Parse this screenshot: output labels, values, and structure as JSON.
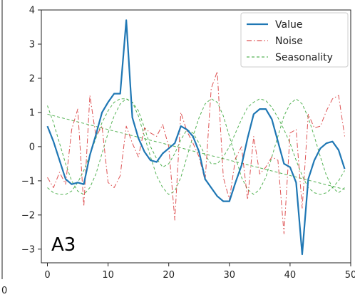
{
  "chart_data": {
    "type": "line",
    "panel_label": "A3",
    "xlim": [
      -1,
      50
    ],
    "ylim": [
      -3.4,
      4.0
    ],
    "x_ticks": [
      0,
      10,
      20,
      30,
      40,
      50
    ],
    "x_tick_labels": [
      "0",
      "10",
      "20",
      "30",
      "40",
      "50"
    ],
    "y_ticks": [
      -3,
      -2,
      -1,
      0,
      1,
      2,
      3,
      4
    ],
    "y_tick_labels": [
      "−3",
      "−2",
      "−1",
      "0",
      "1",
      "2",
      "3",
      "4"
    ],
    "left_edge_label": "0",
    "grid": false,
    "legend": {
      "placement": "top-right",
      "entries": [
        "Value",
        "Noise",
        "Seasonality"
      ]
    },
    "series": [
      {
        "name": "Value",
        "style": "solid",
        "color": "#1f77b4",
        "x": [
          0,
          1,
          2,
          3,
          4,
          5,
          6,
          7,
          8,
          9,
          10,
          11,
          12,
          13,
          14,
          15,
          16,
          17,
          18,
          19,
          20,
          21,
          22,
          23,
          24,
          25,
          26,
          27,
          28,
          29,
          30,
          31,
          32,
          33,
          34,
          35,
          36,
          37,
          38,
          39,
          40,
          41,
          42,
          43,
          44,
          45,
          46,
          47,
          48,
          49
        ],
        "values": [
          0.6,
          0.15,
          -0.4,
          -0.95,
          -1.1,
          -1.05,
          -1.1,
          -0.25,
          0.35,
          1.0,
          1.3,
          1.55,
          1.55,
          3.7,
          0.85,
          0.25,
          -0.15,
          -0.4,
          -0.45,
          -0.2,
          -0.05,
          0.1,
          0.6,
          0.5,
          0.3,
          -0.15,
          -0.95,
          -1.2,
          -1.45,
          -1.6,
          -1.6,
          -1.05,
          -0.55,
          0.25,
          0.95,
          1.1,
          1.1,
          0.8,
          0.15,
          -0.5,
          -0.6,
          -1.05,
          -3.15,
          -0.95,
          -0.4,
          -0.05,
          0.1,
          0.15,
          -0.1,
          -0.65
        ]
      },
      {
        "name": "Noise",
        "style": "dashdot",
        "color": "#d62728",
        "x": [
          0,
          1,
          2,
          3,
          4,
          5,
          6,
          7,
          8,
          9,
          10,
          11,
          12,
          13,
          14,
          15,
          16,
          17,
          18,
          19,
          20,
          21,
          22,
          23,
          24,
          25,
          26,
          27,
          28,
          29,
          30,
          31,
          32,
          33,
          34,
          35,
          36,
          37,
          38,
          39,
          40,
          41,
          42,
          43,
          44,
          45,
          46,
          47,
          48,
          49
        ],
        "values": [
          -0.9,
          -1.2,
          -0.75,
          -1.1,
          0.5,
          1.1,
          -1.75,
          1.5,
          0.3,
          0.6,
          -1.05,
          -1.2,
          -0.85,
          0.6,
          0.1,
          -0.3,
          0.55,
          0.4,
          0.3,
          0.65,
          0.0,
          -2.15,
          1.0,
          0.45,
          0.1,
          -0.3,
          -1.0,
          1.7,
          2.2,
          -0.9,
          -1.55,
          -0.35,
          0.0,
          -1.55,
          0.3,
          -0.8,
          -0.6,
          -0.3,
          -0.4,
          -2.55,
          0.4,
          0.5,
          -1.8,
          0.95,
          0.55,
          0.6,
          1.05,
          1.4,
          1.5,
          0.3
        ]
      },
      {
        "name": "Seasonality",
        "style": "dashed",
        "color": "#2ca02c",
        "x": [
          0,
          1,
          2,
          3,
          4,
          5,
          6,
          7,
          8,
          9,
          10,
          11,
          12,
          13,
          14,
          15,
          16,
          17,
          18,
          19,
          20,
          21,
          22,
          23,
          24,
          25,
          26,
          27,
          28,
          29,
          30,
          31,
          32,
          33,
          34,
          35,
          36,
          37,
          38,
          39,
          40,
          41,
          42,
          43,
          44,
          45,
          46,
          47,
          48,
          49
        ],
        "values": [
          -1.2,
          -1.35,
          -1.4,
          -1.4,
          -1.3,
          -1.05,
          -0.7,
          -0.25,
          0.25,
          0.7,
          1.05,
          1.3,
          1.4,
          1.4,
          1.3,
          1.05,
          0.55,
          0.0,
          -0.35,
          -0.6,
          -0.5,
          -0.2,
          0.2,
          0.5,
          0.4,
          0.1,
          -0.25,
          -0.5,
          -0.5,
          -0.3,
          0.0,
          0.4,
          0.8,
          1.15,
          1.3,
          1.4,
          1.35,
          1.15,
          0.85,
          0.5,
          0.1,
          -0.4,
          -0.85,
          -1.2,
          -1.35,
          -1.4,
          -1.35,
          -1.2,
          -1.0,
          -0.7
        ]
      },
      {
        "name": "Seasonality",
        "style": "dashed",
        "color": "#2ca02c",
        "x": [
          0,
          1,
          2,
          3,
          4,
          5,
          6,
          7,
          8,
          9,
          10,
          11,
          12,
          13,
          14,
          15,
          16,
          17,
          18,
          19,
          20,
          21,
          22,
          23,
          24,
          25,
          26,
          27,
          28,
          29,
          30,
          31,
          32,
          33,
          34,
          35,
          36,
          37,
          38,
          39,
          40,
          41,
          42,
          43,
          44,
          45,
          46,
          47,
          48,
          49
        ],
        "values": [
          1.2,
          0.7,
          0.1,
          -0.5,
          -1.0,
          -1.3,
          -1.4,
          -1.2,
          -0.8,
          -0.2,
          0.4,
          0.9,
          1.25,
          1.4,
          1.3,
          0.9,
          0.3,
          -0.3,
          -0.85,
          -1.2,
          -1.4,
          -1.3,
          -0.9,
          -0.3,
          0.3,
          0.85,
          1.25,
          1.4,
          1.3,
          0.9,
          0.3,
          -0.3,
          -0.9,
          -1.25,
          -1.4,
          -1.25,
          -0.9,
          -0.3,
          0.3,
          0.9,
          1.25,
          1.4,
          1.25,
          0.85,
          0.3,
          -0.3,
          -0.85,
          -1.2,
          -1.35,
          -1.2
        ]
      },
      {
        "name": "Seasonality",
        "style": "dashed",
        "color": "#2ca02c",
        "x": [
          0,
          49
        ],
        "values": [
          0.95,
          -1.25
        ]
      }
    ]
  }
}
